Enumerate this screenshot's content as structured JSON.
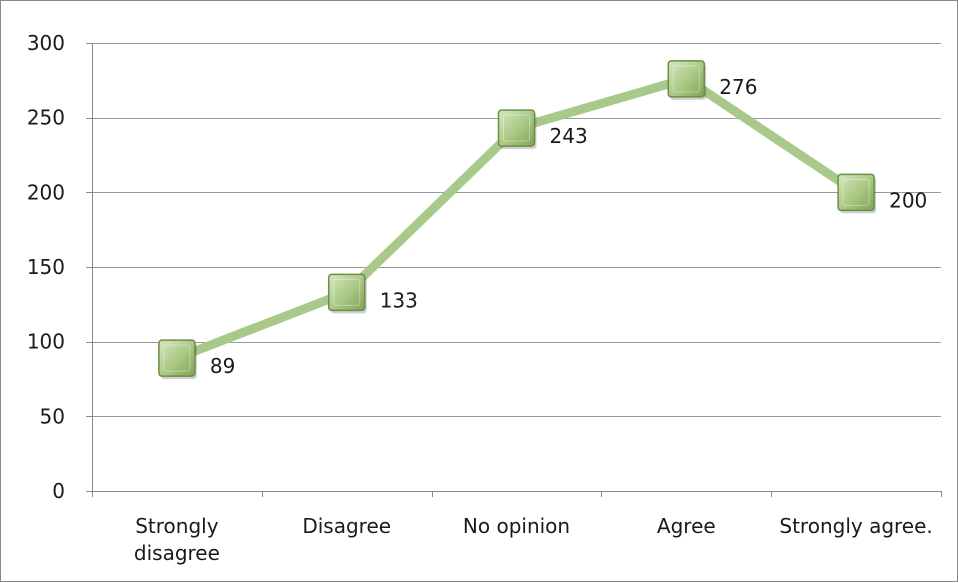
{
  "chart_data": {
    "type": "line",
    "categories": [
      [
        "Strongly",
        "disagree"
      ],
      [
        "Disagree"
      ],
      [
        "No opinion"
      ],
      [
        "Agree"
      ],
      [
        "Strongly agree."
      ]
    ],
    "series": [
      {
        "values": [
          89,
          133,
          243,
          276,
          200
        ]
      }
    ],
    "ylim": [
      0,
      300
    ],
    "yticks": [
      0,
      50,
      100,
      150,
      200,
      250,
      300
    ],
    "grid": true,
    "legend": "none",
    "title": "",
    "xlabel": "",
    "ylabel": "",
    "colors": {
      "line": "#a9c98a",
      "marker_fill_light": "#d6e8bf",
      "marker_fill_dark": "#7fa257",
      "marker_border": "#6b8e45",
      "grid": "#9a9a9a",
      "axis": "#8a8a8a",
      "text": "#1a1a1a"
    }
  }
}
